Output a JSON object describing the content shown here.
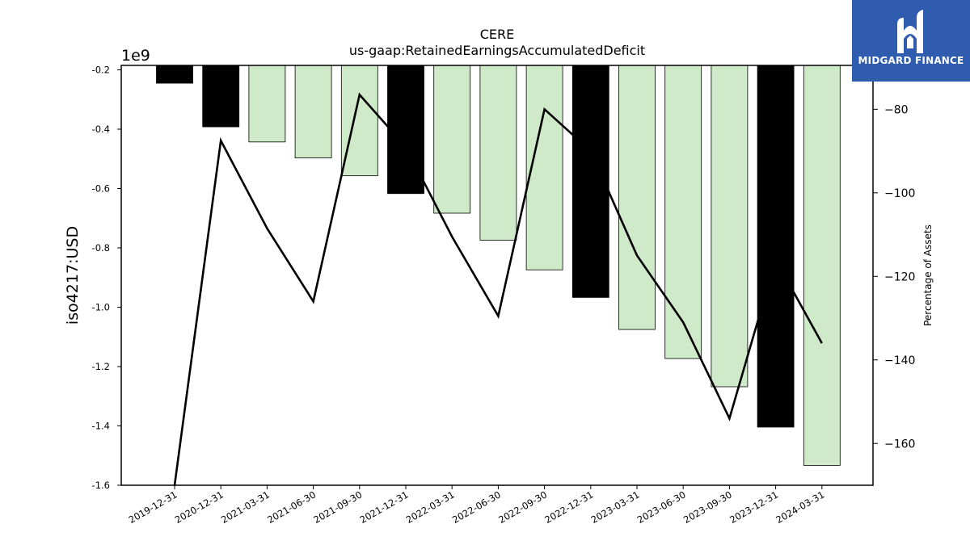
{
  "chart_data": {
    "type": "bar",
    "title": "CERE",
    "subtitle": "us-gaap:RetainedEarningsAccumulatedDeficit",
    "ylabel": "iso4217:USD",
    "y_multiplier": "1e9",
    "y2label": "Percentage of Assets",
    "categories": [
      "2019-12-31",
      "2020-12-31",
      "2021-03-31",
      "2021-06-30",
      "2021-09-30",
      "2021-12-31",
      "2022-03-31",
      "2022-06-30",
      "2022-09-30",
      "2022-12-31",
      "2023-03-31",
      "2023-06-30",
      "2023-09-30",
      "2023-12-31",
      "2024-03-31"
    ],
    "values": [
      -0.245,
      -0.392,
      -0.443,
      -0.497,
      -0.557,
      -0.617,
      -0.683,
      -0.774,
      -0.874,
      -0.967,
      -1.075,
      -1.173,
      -1.268,
      -1.404,
      -1.533
    ],
    "bar_colors": [
      "#000000",
      "#000000",
      "#cfeac8",
      "#cfeac8",
      "#cfeac8",
      "#000000",
      "#cfeac8",
      "#cfeac8",
      "#cfeac8",
      "#000000",
      "#cfeac8",
      "#cfeac8",
      "#cfeac8",
      "#000000",
      "#cfeac8"
    ],
    "line_values": [
      -170,
      -87.5,
      -108.5,
      -126,
      -76.5,
      -89,
      -110.5,
      -129.5,
      -80,
      -90,
      -115,
      -131,
      -154,
      -116,
      -136
    ],
    "ylim": [
      -1.6,
      -0.185
    ],
    "y_ticks": [
      "-0.2",
      "-0.4",
      "-0.6",
      "-0.8",
      "-1.0",
      "-1.2",
      "-1.4",
      "-1.6"
    ],
    "y_tick_values": [
      -0.2,
      -0.4,
      -0.6,
      -0.8,
      -1.0,
      -1.2,
      -1.4,
      -1.6
    ],
    "y2lim": [
      -170,
      -69.5
    ],
    "y2_ticks": [
      "−80",
      "−100",
      "−120",
      "−140",
      "−160"
    ],
    "y2_tick_values": [
      -80,
      -100,
      -120,
      -140,
      -160
    ],
    "grid": false,
    "line_color": "#000000"
  },
  "branding": {
    "logo_text": "MIDGARD FINANCE"
  }
}
